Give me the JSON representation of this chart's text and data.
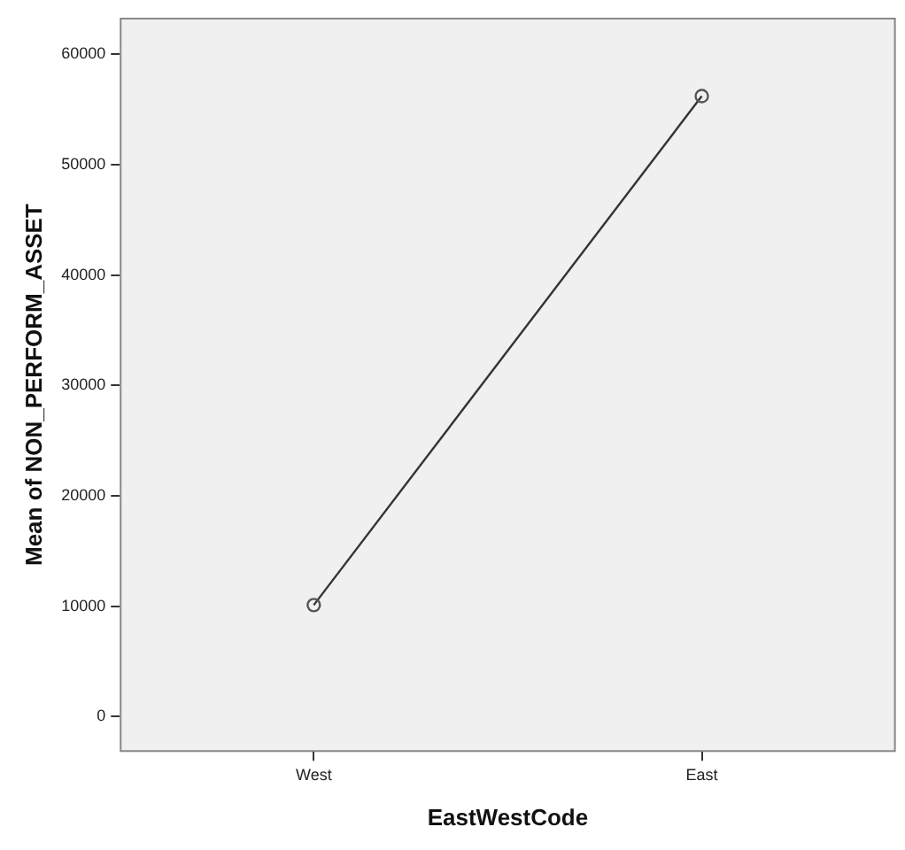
{
  "chart_data": {
    "type": "line",
    "xlabel": "EastWestCode",
    "ylabel": "Mean of NON_PERFORM_ASSET",
    "categories": [
      "West",
      "East"
    ],
    "series": [
      {
        "color": "#333333",
        "values": [
          10100,
          56200
        ]
      }
    ],
    "ylim": [
      -3200,
      63300
    ],
    "yticks": [
      0,
      10000,
      20000,
      30000,
      40000,
      50000,
      60000
    ],
    "grid": false,
    "legend": false,
    "marker": "circle",
    "line_style": "solid"
  }
}
